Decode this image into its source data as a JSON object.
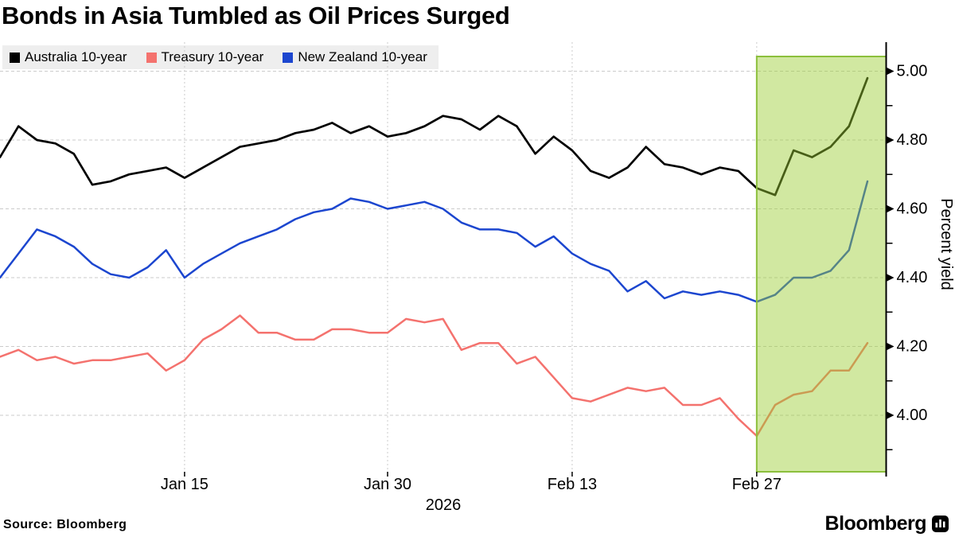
{
  "title": "Bonds in Asia Tumbled as Oil Prices Surged",
  "source_label": "Source: Bloomberg",
  "brand": {
    "logo_text": "Bloomberg",
    "logo_icon": "bar-chart-icon"
  },
  "chart_data": {
    "type": "line",
    "title": "Bonds in Asia Tumbled as Oil Prices Surged",
    "x_unit": "trading days, Jan 1 - Mar 9, 2026",
    "xlabel_year": "2026",
    "ylabel": "Percent yield",
    "grid": true,
    "legend_position": "top-left",
    "y_major_ticks": [
      "4.00",
      "4.20",
      "4.40",
      "4.60",
      "4.80",
      "5.00"
    ],
    "y_minor_ticks": [
      3.9,
      4.1,
      4.3,
      4.5,
      4.7,
      4.9
    ],
    "ylim_ticks": [
      4.0,
      5.0
    ],
    "x_ticks": [
      {
        "label": "Jan 15",
        "index": 10
      },
      {
        "label": "Jan 30",
        "index": 21
      },
      {
        "label": "Feb 13",
        "index": 31
      },
      {
        "label": "Feb 27",
        "index": 41
      }
    ],
    "highlight_region": {
      "start_index": 41,
      "start_label": "Feb 27",
      "extends_to": "right axis",
      "fill": "#9ACD32",
      "fill_opacity": 0.46,
      "border": "#8CBF3C"
    },
    "dates": [
      "Jan 1",
      "Jan 2",
      "Jan 5",
      "Jan 6",
      "Jan 7",
      "Jan 8",
      "Jan 9",
      "Jan 12",
      "Jan 13",
      "Jan 14",
      "Jan 15",
      "Jan 16",
      "Jan 19",
      "Jan 20",
      "Jan 21",
      "Jan 22",
      "Jan 23",
      "Jan 26",
      "Jan 27",
      "Jan 28",
      "Jan 29",
      "Jan 30",
      "Feb 2",
      "Feb 3",
      "Feb 4",
      "Feb 5",
      "Feb 6",
      "Feb 9",
      "Feb 10",
      "Feb 11",
      "Feb 12",
      "Feb 13",
      "Feb 16",
      "Feb 17",
      "Feb 18",
      "Feb 19",
      "Feb 20",
      "Feb 23",
      "Feb 24",
      "Feb 25",
      "Feb 26",
      "Feb 27",
      "Mar 2",
      "Mar 3",
      "Mar 4",
      "Mar 5",
      "Mar 6",
      "Mar 9"
    ],
    "series": [
      {
        "name": "Australia 10-year",
        "color": "#000000",
        "values": [
          4.75,
          4.84,
          4.8,
          4.79,
          4.76,
          4.67,
          4.68,
          4.7,
          4.71,
          4.72,
          4.69,
          4.72,
          4.75,
          4.78,
          4.79,
          4.8,
          4.82,
          4.83,
          4.85,
          4.82,
          4.84,
          4.81,
          4.82,
          4.84,
          4.87,
          4.86,
          4.83,
          4.87,
          4.84,
          4.76,
          4.81,
          4.77,
          4.71,
          4.69,
          4.72,
          4.78,
          4.73,
          4.72,
          4.7,
          4.72,
          4.71,
          4.66,
          4.64,
          4.77,
          4.75,
          4.78,
          4.84,
          4.98
        ]
      },
      {
        "name": "Treasury 10-year",
        "color": "#F4726E",
        "values": [
          4.17,
          4.19,
          4.16,
          4.17,
          4.15,
          4.16,
          4.16,
          4.17,
          4.18,
          4.13,
          4.16,
          4.22,
          4.25,
          4.29,
          4.24,
          4.24,
          4.22,
          4.22,
          4.25,
          4.25,
          4.24,
          4.24,
          4.28,
          4.27,
          4.28,
          4.19,
          4.21,
          4.21,
          4.15,
          4.17,
          4.11,
          4.05,
          4.04,
          4.06,
          4.08,
          4.07,
          4.08,
          4.03,
          4.03,
          4.05,
          3.99,
          3.94,
          4.03,
          4.06,
          4.07,
          4.13,
          4.13,
          4.21
        ]
      },
      {
        "name": "New Zealand 10-year",
        "color": "#1C46CF",
        "values": [
          4.4,
          4.47,
          4.54,
          4.52,
          4.49,
          4.44,
          4.41,
          4.4,
          4.43,
          4.48,
          4.4,
          4.44,
          4.47,
          4.5,
          4.52,
          4.54,
          4.57,
          4.59,
          4.6,
          4.63,
          4.62,
          4.6,
          4.61,
          4.62,
          4.6,
          4.56,
          4.54,
          4.54,
          4.53,
          4.49,
          4.52,
          4.47,
          4.44,
          4.42,
          4.36,
          4.39,
          4.34,
          4.36,
          4.35,
          4.36,
          4.35,
          4.33,
          4.35,
          4.4,
          4.4,
          4.42,
          4.48,
          4.68
        ]
      }
    ]
  }
}
